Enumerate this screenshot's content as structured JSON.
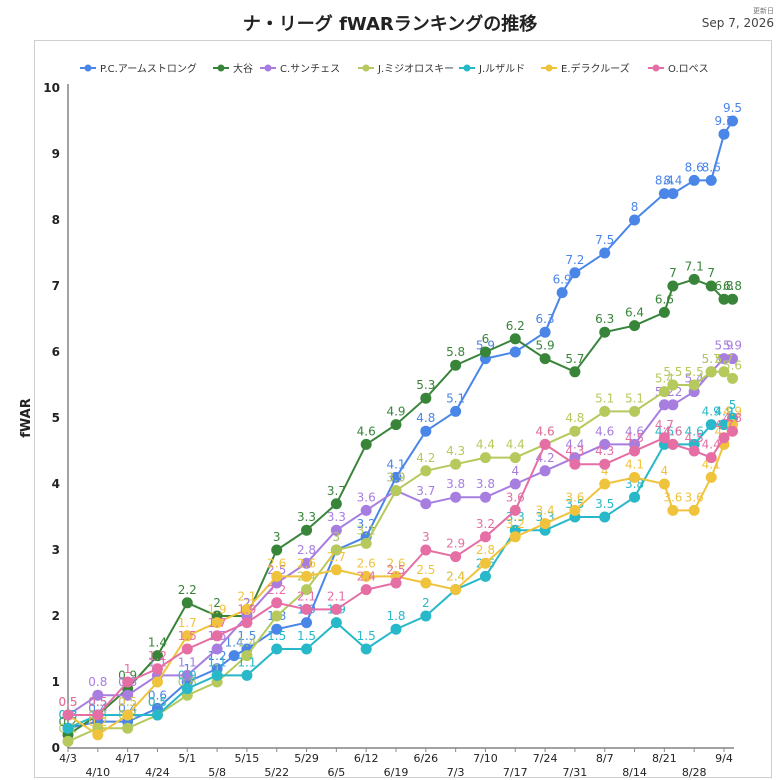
{
  "title": "ナ・リーグ fWARランキングの推移",
  "updated_label": "更新日",
  "updated_date": "Sep 7, 2026",
  "chart_data": {
    "type": "line",
    "title": "ナ・リーグ fWARランキングの推移",
    "xlabel": "",
    "ylabel": "fWAR",
    "ylim": [
      0,
      10
    ],
    "yticks": [
      0,
      1,
      2,
      3,
      4,
      5,
      6,
      7,
      8,
      9,
      10
    ],
    "grid": false,
    "legend_position": "top",
    "x_start": "4/3",
    "x_end": "9/4",
    "x_ticks": [
      "4/3",
      "4/10",
      "4/17",
      "4/24",
      "5/1",
      "5/8",
      "5/15",
      "5/22",
      "5/29",
      "6/5",
      "6/12",
      "6/19",
      "6/26",
      "7/3",
      "7/10",
      "7/17",
      "7/24",
      "7/31",
      "8/7",
      "8/14",
      "8/21",
      "8/28",
      "9/4"
    ],
    "series": [
      {
        "name": "P.C.アームストロング",
        "color": "#4a86e8",
        "dates": [
          "4/3",
          "4/10",
          "4/17",
          "4/24",
          "5/1",
          "5/8",
          "5/12",
          "5/15",
          "5/22",
          "5/29",
          "6/5",
          "6/12",
          "6/19",
          "6/26",
          "7/3",
          "7/10",
          "7/17",
          "7/24",
          "7/28",
          "7/31",
          "8/7",
          "8/14",
          "8/21",
          "8/23",
          "8/28",
          "9/1",
          "9/4",
          "9/6"
        ],
        "values": [
          0.3,
          0.4,
          0.4,
          0.6,
          1.0,
          1.2,
          1.4,
          1.5,
          1.8,
          1.9,
          3.0,
          3.2,
          4.1,
          4.8,
          5.1,
          5.9,
          6.0,
          6.3,
          6.9,
          7.2,
          7.5,
          8.0,
          8.4,
          8.4,
          8.6,
          8.6,
          9.3,
          9.5
        ]
      },
      {
        "name": "大谷",
        "color": "#38853a",
        "dates": [
          "4/3",
          "4/10",
          "4/17",
          "4/24",
          "5/1",
          "5/8",
          "5/15",
          "5/22",
          "5/29",
          "6/5",
          "6/12",
          "6/19",
          "6/26",
          "7/3",
          "7/10",
          "7/17",
          "7/24",
          "7/31",
          "8/7",
          "8/14",
          "8/21",
          "8/23",
          "8/28",
          "9/1",
          "9/4",
          "9/6"
        ],
        "values": [
          0.2,
          0.5,
          0.9,
          1.4,
          2.2,
          2.0,
          2.0,
          3.0,
          3.3,
          3.7,
          4.6,
          4.9,
          5.3,
          5.8,
          6.0,
          6.2,
          5.9,
          5.7,
          6.3,
          6.4,
          6.6,
          7.0,
          7.1,
          7.0,
          6.8,
          6.8
        ]
      },
      {
        "name": "C.サンチェス",
        "color": "#a77ee0",
        "dates": [
          "4/3",
          "4/10",
          "4/17",
          "4/24",
          "5/1",
          "5/8",
          "5/15",
          "5/22",
          "5/29",
          "6/5",
          "6/12",
          "6/19",
          "6/26",
          "7/3",
          "7/10",
          "7/17",
          "7/24",
          "7/31",
          "8/7",
          "8/14",
          "8/21",
          "8/23",
          "8/28",
          "9/1",
          "9/4",
          "9/6"
        ],
        "values": [
          0.5,
          0.8,
          0.8,
          1.1,
          1.1,
          1.5,
          2.0,
          2.5,
          2.8,
          3.3,
          3.6,
          3.9,
          3.7,
          3.8,
          3.8,
          4.0,
          4.2,
          4.4,
          4.6,
          4.6,
          5.2,
          5.2,
          5.4,
          5.7,
          5.9,
          5.9
        ]
      },
      {
        "name": "J.ミジオロスキー",
        "color": "#b5c95c",
        "dates": [
          "4/3",
          "4/10",
          "4/17",
          "4/24",
          "5/1",
          "5/8",
          "5/15",
          "5/22",
          "5/29",
          "6/5",
          "6/12",
          "6/19",
          "6/26",
          "7/3",
          "7/10",
          "7/17",
          "7/24",
          "7/31",
          "8/7",
          "8/14",
          "8/21",
          "8/23",
          "8/28",
          "9/1",
          "9/4",
          "9/6"
        ],
        "values": [
          0.1,
          0.3,
          0.3,
          0.5,
          0.8,
          1.0,
          1.4,
          2.0,
          2.4,
          3.0,
          3.1,
          3.9,
          4.2,
          4.3,
          4.4,
          4.4,
          4.6,
          4.8,
          5.1,
          5.1,
          5.4,
          5.5,
          5.5,
          5.7,
          5.7,
          5.6
        ]
      },
      {
        "name": "J.ルザルド",
        "color": "#27b8c9",
        "dates": [
          "4/3",
          "4/10",
          "4/17",
          "4/24",
          "5/1",
          "5/8",
          "5/15",
          "5/22",
          "5/29",
          "6/5",
          "6/12",
          "6/19",
          "6/26",
          "7/3",
          "7/10",
          "7/17",
          "7/24",
          "7/31",
          "8/7",
          "8/14",
          "8/21",
          "8/23",
          "8/28",
          "9/1",
          "9/4",
          "9/6"
        ],
        "values": [
          0.3,
          0.5,
          0.5,
          0.5,
          0.9,
          1.1,
          1.1,
          1.5,
          1.5,
          1.9,
          1.5,
          1.8,
          2.0,
          2.4,
          2.6,
          3.3,
          3.3,
          3.5,
          3.5,
          3.8,
          4.6,
          4.6,
          4.6,
          4.9,
          4.9,
          5.0
        ]
      },
      {
        "name": "E.デラクルーズ",
        "color": "#f0c33c",
        "dates": [
          "4/3",
          "4/10",
          "4/17",
          "4/24",
          "5/1",
          "5/8",
          "5/15",
          "5/22",
          "5/29",
          "6/5",
          "6/12",
          "6/19",
          "6/26",
          "7/3",
          "7/10",
          "7/17",
          "7/24",
          "7/31",
          "8/7",
          "8/14",
          "8/21",
          "8/23",
          "8/28",
          "9/1",
          "9/4",
          "9/6"
        ],
        "values": [
          0.5,
          0.2,
          0.5,
          1.0,
          1.7,
          1.9,
          2.1,
          2.6,
          2.6,
          2.7,
          2.6,
          2.6,
          2.5,
          2.4,
          2.8,
          3.2,
          3.4,
          3.6,
          4.0,
          4.1,
          4.0,
          3.6,
          3.6,
          4.1,
          4.6,
          4.9
        ]
      },
      {
        "name": "O.ロペス",
        "color": "#e56fa5",
        "dates": [
          "4/3",
          "4/10",
          "4/17",
          "4/24",
          "5/1",
          "5/8",
          "5/15",
          "5/22",
          "5/29",
          "6/5",
          "6/12",
          "6/19",
          "6/26",
          "7/3",
          "7/10",
          "7/17",
          "7/24",
          "7/31",
          "8/7",
          "8/14",
          "8/21",
          "8/23",
          "8/28",
          "9/1",
          "9/4",
          "9/6"
        ],
        "values": [
          0.5,
          0.5,
          1.0,
          1.2,
          1.5,
          1.7,
          1.9,
          2.2,
          2.1,
          2.1,
          2.4,
          2.5,
          3.0,
          2.9,
          3.2,
          3.6,
          4.6,
          4.3,
          4.3,
          4.5,
          4.7,
          4.6,
          4.5,
          4.4,
          4.7,
          4.8
        ]
      }
    ]
  }
}
